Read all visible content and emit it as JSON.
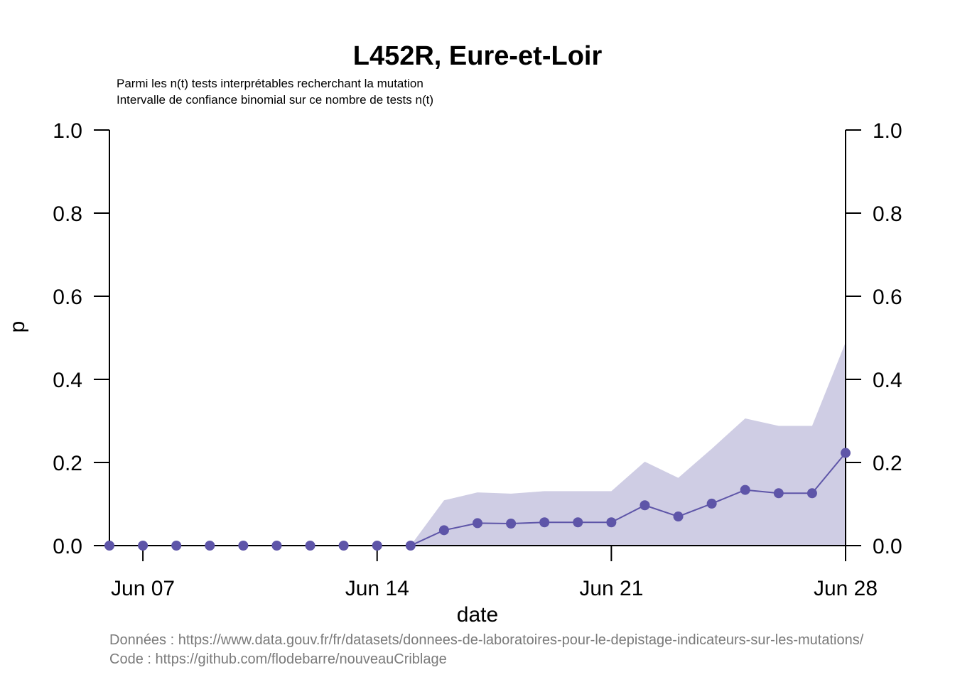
{
  "chart_data": {
    "type": "line",
    "title": "L452R, Eure-et-Loir",
    "subtitle_lines": [
      "Parmi les n(t) tests interprétables recherchant la mutation",
      "Intervalle de confiance binomial sur ce nombre de tests n(t)"
    ],
    "xlabel": "date",
    "ylabel": "p",
    "ylim": [
      0,
      1
    ],
    "y_ticks": [
      "0.0",
      "0.2",
      "0.4",
      "0.6",
      "0.8",
      "1.0"
    ],
    "y_tick_values": [
      0,
      0.2,
      0.4,
      0.6,
      0.8,
      1.0
    ],
    "x_ticks": [
      "Jun 07",
      "Jun 14",
      "Jun 21",
      "Jun 28"
    ],
    "x_tick_values": [
      "2021-06-07",
      "2021-06-14",
      "2021-06-21",
      "2021-06-28"
    ],
    "xlim": [
      "2021-06-06",
      "2021-06-28"
    ],
    "series": [
      {
        "x": [
          "2021-06-06",
          "2021-06-07",
          "2021-06-08",
          "2021-06-09",
          "2021-06-10",
          "2021-06-11",
          "2021-06-12",
          "2021-06-13",
          "2021-06-14",
          "2021-06-15",
          "2021-06-16",
          "2021-06-17",
          "2021-06-18",
          "2021-06-19",
          "2021-06-20",
          "2021-06-21",
          "2021-06-22",
          "2021-06-23",
          "2021-06-24",
          "2021-06-25",
          "2021-06-26",
          "2021-06-27",
          "2021-06-28"
        ],
        "values": [
          0,
          0,
          0,
          0,
          0,
          0,
          0,
          0,
          0,
          0,
          0.037,
          0.054,
          0.053,
          0.056,
          0.056,
          0.056,
          0.097,
          0.07,
          0.101,
          0.134,
          0.126,
          0.126,
          0.223
        ],
        "ci_low": [
          0,
          0,
          0,
          0,
          0,
          0,
          0,
          0,
          0,
          0,
          0,
          0,
          0,
          0,
          0,
          0,
          0,
          0,
          0,
          0,
          0,
          0,
          0
        ],
        "ci_high": [
          0,
          0,
          0,
          0,
          0,
          0,
          0,
          0,
          0,
          0,
          0.109,
          0.128,
          0.125,
          0.131,
          0.131,
          0.131,
          0.202,
          0.163,
          0.233,
          0.306,
          0.288,
          0.288,
          0.489
        ]
      }
    ],
    "colors": {
      "line": "#5e55a8",
      "band": "#cfcde4",
      "axis": "#000000",
      "caption": "#7a7a7a"
    },
    "grid": false
  },
  "captions": {
    "data_source": "Données : https://www.data.gouv.fr/fr/datasets/donnees-de-laboratoires-pour-le-depistage-indicateurs-sur-les-mutations/",
    "code_source": "Code : https://github.com/flodebarre/nouveauCriblage"
  }
}
